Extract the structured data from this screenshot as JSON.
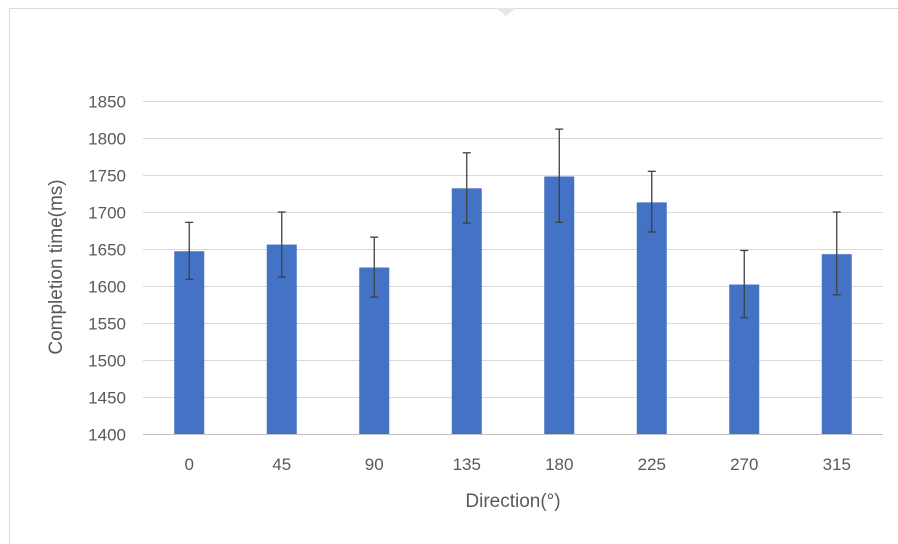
{
  "chart_data": {
    "type": "bar",
    "title": "",
    "xlabel": "Direction(°)",
    "ylabel": "Completion time(ms)",
    "categories": [
      "0",
      "45",
      "90",
      "135",
      "180",
      "225",
      "270",
      "315"
    ],
    "series": [
      {
        "values": [
          1647,
          1656,
          1625,
          1732,
          1748,
          1713,
          1602,
          1643
        ],
        "error_low": [
          1609,
          1612,
          1585,
          1685,
          1686,
          1673,
          1557,
          1588
        ],
        "error_high": [
          1686,
          1700,
          1666,
          1780,
          1812,
          1755,
          1648,
          1700
        ]
      }
    ],
    "ylim": [
      1400,
      1850
    ],
    "yticks": [
      "1400",
      "1450",
      "1500",
      "1550",
      "1600",
      "1650",
      "1700",
      "1750",
      "1800",
      "1850"
    ],
    "grid": true,
    "legend": "none"
  },
  "colors": {
    "bar": "#4472C4",
    "grid": "#D9D9D9",
    "axis": "#BFBFBF",
    "text": "#595959",
    "error_bar": "#404040"
  }
}
